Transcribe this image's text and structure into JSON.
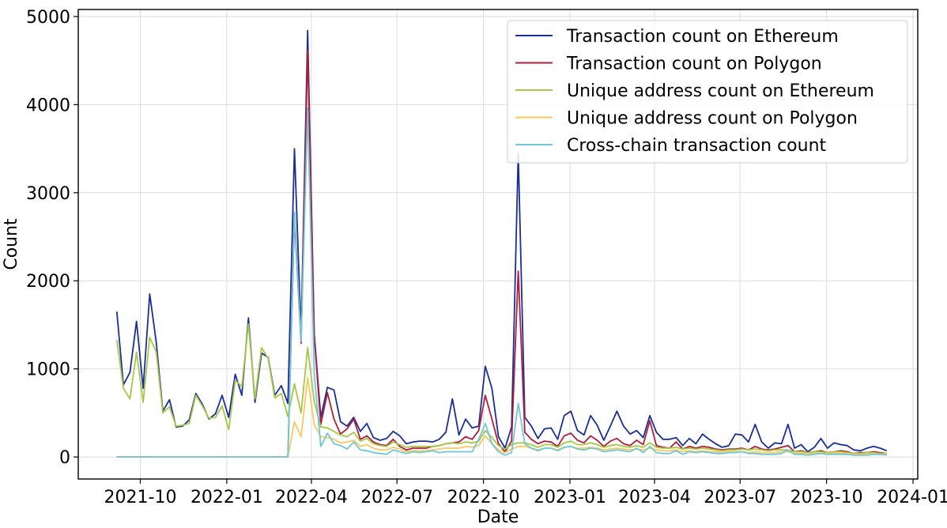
{
  "chart_data": {
    "type": "line",
    "title": "",
    "xlabel": "Date",
    "ylabel": "Count",
    "ylim": [
      -250,
      5080
    ],
    "xlim": [
      "2021-07-27",
      "2024-01-06"
    ],
    "grid": true,
    "legend_position": "top-right",
    "y_ticks": [
      0,
      1000,
      2000,
      3000,
      4000,
      5000
    ],
    "x_ticks": [
      {
        "date": "2021-10-01",
        "label": "2021-10"
      },
      {
        "date": "2022-01-01",
        "label": "2022-01"
      },
      {
        "date": "2022-04-01",
        "label": "2022-04"
      },
      {
        "date": "2022-07-01",
        "label": "2022-07"
      },
      {
        "date": "2022-10-01",
        "label": "2022-10"
      },
      {
        "date": "2023-01-01",
        "label": "2023-01"
      },
      {
        "date": "2023-04-01",
        "label": "2023-04"
      },
      {
        "date": "2023-07-01",
        "label": "2023-07"
      },
      {
        "date": "2023-10-01",
        "label": "2023-10"
      },
      {
        "date": "2024-01-01",
        "label": "2024-01"
      }
    ],
    "x": [
      "2021-09-06",
      "2021-09-13",
      "2021-09-20",
      "2021-09-27",
      "2021-10-04",
      "2021-10-11",
      "2021-10-18",
      "2021-10-25",
      "2021-11-01",
      "2021-11-08",
      "2021-11-15",
      "2021-11-22",
      "2021-11-29",
      "2021-12-06",
      "2021-12-13",
      "2021-12-20",
      "2021-12-27",
      "2022-01-03",
      "2022-01-10",
      "2022-01-17",
      "2022-01-24",
      "2022-01-31",
      "2022-02-07",
      "2022-02-14",
      "2022-02-21",
      "2022-02-28",
      "2022-03-07",
      "2022-03-14",
      "2022-03-21",
      "2022-03-28",
      "2022-04-04",
      "2022-04-11",
      "2022-04-18",
      "2022-04-25",
      "2022-05-02",
      "2022-05-09",
      "2022-05-16",
      "2022-05-23",
      "2022-05-30",
      "2022-06-06",
      "2022-06-13",
      "2022-06-20",
      "2022-06-27",
      "2022-07-04",
      "2022-07-11",
      "2022-07-18",
      "2022-07-25",
      "2022-08-01",
      "2022-08-08",
      "2022-08-15",
      "2022-08-22",
      "2022-08-29",
      "2022-09-05",
      "2022-09-12",
      "2022-09-19",
      "2022-09-26",
      "2022-10-03",
      "2022-10-10",
      "2022-10-17",
      "2022-10-24",
      "2022-10-31",
      "2022-11-07",
      "2022-11-14",
      "2022-11-21",
      "2022-11-28",
      "2022-12-05",
      "2022-12-12",
      "2022-12-19",
      "2022-12-26",
      "2023-01-02",
      "2023-01-09",
      "2023-01-16",
      "2023-01-23",
      "2023-01-30",
      "2023-02-06",
      "2023-02-13",
      "2023-02-20",
      "2023-02-27",
      "2023-03-06",
      "2023-03-13",
      "2023-03-20",
      "2023-03-27",
      "2023-04-03",
      "2023-04-10",
      "2023-04-17",
      "2023-04-24",
      "2023-05-01",
      "2023-05-08",
      "2023-05-15",
      "2023-05-22",
      "2023-05-29",
      "2023-06-05",
      "2023-06-12",
      "2023-06-19",
      "2023-06-26",
      "2023-07-03",
      "2023-07-10",
      "2023-07-17",
      "2023-07-24",
      "2023-07-31",
      "2023-08-07",
      "2023-08-14",
      "2023-08-21",
      "2023-08-28",
      "2023-09-04",
      "2023-09-11",
      "2023-09-18",
      "2023-09-25",
      "2023-10-02",
      "2023-10-09",
      "2023-10-16",
      "2023-10-23",
      "2023-10-30",
      "2023-11-06",
      "2023-11-13",
      "2023-11-20",
      "2023-11-27",
      "2023-12-04"
    ],
    "series": [
      {
        "name": "Transaction count on Ethereum",
        "color": "#1a2e96",
        "values": [
          1650,
          820,
          960,
          1540,
          780,
          1850,
          1300,
          520,
          650,
          340,
          350,
          420,
          720,
          600,
          430,
          490,
          700,
          450,
          940,
          700,
          1580,
          620,
          1180,
          1130,
          700,
          810,
          610,
          3500,
          1400,
          4840,
          1400,
          450,
          790,
          760,
          400,
          350,
          450,
          290,
          380,
          220,
          190,
          210,
          290,
          240,
          150,
          170,
          180,
          180,
          170,
          200,
          280,
          660,
          250,
          430,
          330,
          350,
          1030,
          780,
          230,
          100,
          340,
          3450,
          450,
          350,
          210,
          320,
          330,
          200,
          470,
          520,
          300,
          250,
          470,
          360,
          190,
          350,
          520,
          350,
          260,
          300,
          220,
          470,
          280,
          200,
          200,
          220,
          130,
          210,
          150,
          260,
          200,
          150,
          110,
          130,
          260,
          250,
          170,
          370,
          170,
          100,
          160,
          150,
          370,
          100,
          140,
          60,
          110,
          210,
          100,
          160,
          140,
          130,
          80,
          70,
          100,
          120,
          100,
          70
        ]
      },
      {
        "name": "Transaction count on Polygon",
        "color": "#b11e3c",
        "values": [
          0,
          0,
          0,
          0,
          0,
          0,
          0,
          0,
          0,
          0,
          0,
          0,
          0,
          0,
          0,
          0,
          0,
          0,
          0,
          0,
          0,
          0,
          0,
          0,
          0,
          0,
          0,
          2730,
          1290,
          4620,
          1380,
          370,
          730,
          430,
          260,
          320,
          430,
          200,
          240,
          170,
          140,
          130,
          200,
          120,
          80,
          100,
          100,
          100,
          120,
          130,
          150,
          160,
          170,
          230,
          200,
          300,
          700,
          430,
          150,
          60,
          180,
          2110,
          280,
          200,
          150,
          180,
          170,
          120,
          240,
          270,
          190,
          160,
          240,
          190,
          120,
          180,
          210,
          150,
          130,
          190,
          140,
          410,
          130,
          110,
          100,
          170,
          90,
          120,
          100,
          120,
          110,
          90,
          80,
          90,
          90,
          100,
          80,
          120,
          90,
          80,
          90,
          110,
          130,
          60,
          70,
          50,
          60,
          70,
          50,
          60,
          70,
          60,
          40,
          50,
          50,
          60,
          50,
          40
        ]
      },
      {
        "name": "Unique address count on Ethereum",
        "color": "#a6c846",
        "values": [
          1330,
          780,
          660,
          1190,
          620,
          1360,
          1190,
          500,
          570,
          350,
          360,
          380,
          700,
          580,
          440,
          450,
          580,
          310,
          870,
          800,
          1510,
          660,
          1240,
          1120,
          670,
          720,
          460,
          830,
          500,
          1240,
          630,
          340,
          330,
          290,
          250,
          230,
          280,
          180,
          210,
          150,
          130,
          120,
          170,
          140,
          110,
          120,
          120,
          120,
          120,
          130,
          150,
          160,
          150,
          170,
          160,
          180,
          300,
          220,
          130,
          90,
          140,
          160,
          160,
          140,
          110,
          140,
          140,
          110,
          160,
          180,
          140,
          140,
          160,
          140,
          110,
          130,
          140,
          120,
          110,
          130,
          110,
          160,
          110,
          100,
          100,
          110,
          90,
          100,
          90,
          100,
          90,
          80,
          70,
          80,
          80,
          90,
          80,
          90,
          80,
          70,
          80,
          80,
          80,
          60,
          60,
          50,
          60,
          60,
          50,
          60,
          60,
          50,
          40,
          40,
          50,
          50,
          40,
          40
        ]
      },
      {
        "name": "Unique address count on Polygon",
        "color": "#f8c95e",
        "values": [
          0,
          0,
          0,
          0,
          0,
          0,
          0,
          0,
          0,
          0,
          0,
          0,
          0,
          0,
          0,
          0,
          0,
          0,
          0,
          0,
          0,
          0,
          0,
          0,
          0,
          0,
          0,
          400,
          230,
          900,
          370,
          230,
          220,
          200,
          160,
          170,
          190,
          120,
          140,
          100,
          80,
          80,
          110,
          90,
          60,
          70,
          70,
          70,
          80,
          90,
          100,
          100,
          100,
          120,
          110,
          130,
          240,
          150,
          80,
          50,
          90,
          120,
          120,
          100,
          80,
          100,
          100,
          80,
          110,
          120,
          100,
          100,
          110,
          100,
          80,
          90,
          100,
          90,
          80,
          90,
          80,
          100,
          80,
          70,
          70,
          80,
          60,
          70,
          60,
          70,
          60,
          60,
          50,
          60,
          60,
          60,
          50,
          60,
          50,
          50,
          50,
          60,
          60,
          40,
          40,
          40,
          40,
          40,
          40,
          40,
          40,
          40,
          30,
          30,
          30,
          40,
          30,
          30
        ]
      },
      {
        "name": "Cross-chain transaction count",
        "color": "#6ec8d8",
        "values": [
          0,
          0,
          0,
          0,
          0,
          0,
          0,
          0,
          0,
          0,
          0,
          0,
          0,
          0,
          0,
          0,
          0,
          0,
          0,
          0,
          0,
          0,
          0,
          0,
          0,
          0,
          0,
          2780,
          1310,
          3960,
          950,
          120,
          270,
          150,
          130,
          90,
          170,
          80,
          70,
          50,
          40,
          30,
          80,
          60,
          40,
          60,
          50,
          60,
          70,
          50,
          60,
          60,
          60,
          60,
          60,
          200,
          380,
          150,
          60,
          20,
          50,
          610,
          150,
          100,
          70,
          100,
          100,
          70,
          110,
          120,
          90,
          80,
          100,
          90,
          60,
          70,
          80,
          70,
          60,
          100,
          50,
          120,
          50,
          40,
          40,
          70,
          30,
          60,
          50,
          60,
          50,
          40,
          40,
          50,
          50,
          60,
          40,
          40,
          30,
          30,
          30,
          40,
          80,
          30,
          30,
          20,
          30,
          40,
          30,
          30,
          30,
          30,
          20,
          20,
          20,
          30,
          30,
          20
        ]
      }
    ]
  }
}
